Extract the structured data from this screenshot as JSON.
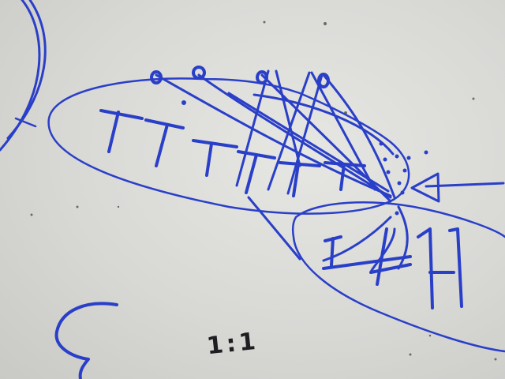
{
  "image": {
    "ratio_text": "1:1",
    "ink_color": "#2a3fc8",
    "board_color": "#d9d9d6",
    "annotation_ink_color": "#1e1e22"
  }
}
